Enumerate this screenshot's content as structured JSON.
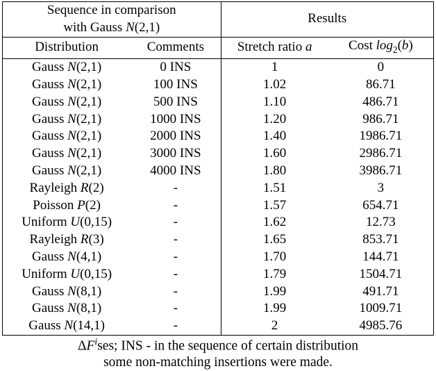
{
  "header": {
    "group_left_line1": "Sequence in comparison",
    "group_left_line2": "with Gauss N(2,1)",
    "group_right": "Results",
    "col_distribution": "Distribution",
    "col_comments": "Comments",
    "col_stretch": "Stretch ratio a",
    "col_cost": "Cost log2(b)"
  },
  "rows": [
    {
      "distribution": "Gauss N(2,1)",
      "comments": "0 INS",
      "stretch": "1",
      "cost": "0"
    },
    {
      "distribution": "Gauss N(2,1)",
      "comments": "100 INS",
      "stretch": "1.02",
      "cost": "86.71"
    },
    {
      "distribution": "Gauss N(2,1)",
      "comments": "500 INS",
      "stretch": "1.10",
      "cost": "486.71"
    },
    {
      "distribution": "Gauss N(2,1)",
      "comments": "1000 INS",
      "stretch": "1.20",
      "cost": "986.71"
    },
    {
      "distribution": "Gauss N(2,1)",
      "comments": "2000 INS",
      "stretch": "1.40",
      "cost": "1986.71"
    },
    {
      "distribution": "Gauss N(2,1)",
      "comments": "3000 INS",
      "stretch": "1.60",
      "cost": "2986.71"
    },
    {
      "distribution": "Gauss N(2,1)",
      "comments": "4000 INS",
      "stretch": "1.80",
      "cost": "3986.71"
    },
    {
      "distribution": "Rayleigh R(2)",
      "comments": "-",
      "stretch": "1.51",
      "cost": "3"
    },
    {
      "distribution": "Poisson P(2)",
      "comments": "-",
      "stretch": "1.57",
      "cost": "654.71"
    },
    {
      "distribution": "Uniform U(0,15)",
      "comments": "-",
      "stretch": "1.62",
      "cost": "12.73"
    },
    {
      "distribution": "Rayleigh R(3)",
      "comments": "-",
      "stretch": "1.65",
      "cost": "853.71"
    },
    {
      "distribution": "Gauss N(4,1)",
      "comments": "-",
      "stretch": "1.70",
      "cost": "144.71"
    },
    {
      "distribution": "Uniform U(0,15)",
      "comments": "-",
      "stretch": "1.79",
      "cost": "1504.71"
    },
    {
      "distribution": "Gauss N(8,1)",
      "comments": "-",
      "stretch": "1.99",
      "cost": "491.71"
    },
    {
      "distribution": "Gauss N(8,1)",
      "comments": "-",
      "stretch": "1.99",
      "cost": "1009.71"
    },
    {
      "distribution": "Gauss N(14,1)",
      "comments": "-",
      "stretch": "2",
      "cost": "4985.76"
    }
  ],
  "caption": {
    "line1": "ΔF^i ses; INS - in the sequence of certain distribution",
    "line2": "some non-matching insertions were made."
  }
}
